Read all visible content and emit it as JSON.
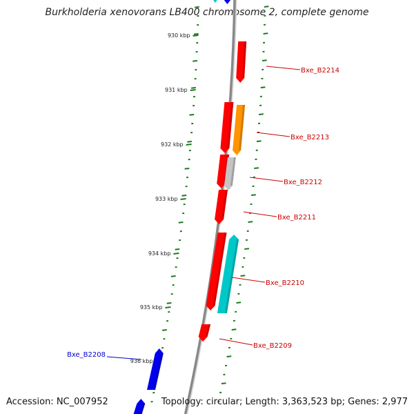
{
  "title": "Burkholderia xenovorans LB400 chromosome 2, complete genome",
  "footer": {
    "accession": "Accession: NC_007952",
    "summary": "Topology: circular; Length: 3,363,523 bp; Genes: 2,977"
  },
  "colors": {
    "backbone": "#888888",
    "tick": "#1a7a1a",
    "forward_gene": "#ff0000",
    "reverse_gene": "#0000ee",
    "cyan_gene": "#00c8c8",
    "orange_gene": "#ff9400",
    "gray_gene": "#c4c4c4",
    "label_forward": "#cc0000",
    "label_reverse": "#0000cc"
  },
  "position_labels": [
    "930 kbp",
    "931 kbp",
    "932 kbp",
    "933 kbp",
    "934 kbp",
    "935 kbp",
    "936 kbp"
  ],
  "gene_labels": [
    {
      "name": "Bxe_B2214",
      "strand": "forward"
    },
    {
      "name": "Bxe_B2213",
      "strand": "forward"
    },
    {
      "name": "Bxe_B2212",
      "strand": "forward"
    },
    {
      "name": "Bxe_B2211",
      "strand": "forward"
    },
    {
      "name": "Bxe_B2210",
      "strand": "forward"
    },
    {
      "name": "Bxe_B2209",
      "strand": "forward"
    },
    {
      "name": "Bxe_B2208",
      "strand": "reverse"
    }
  ]
}
